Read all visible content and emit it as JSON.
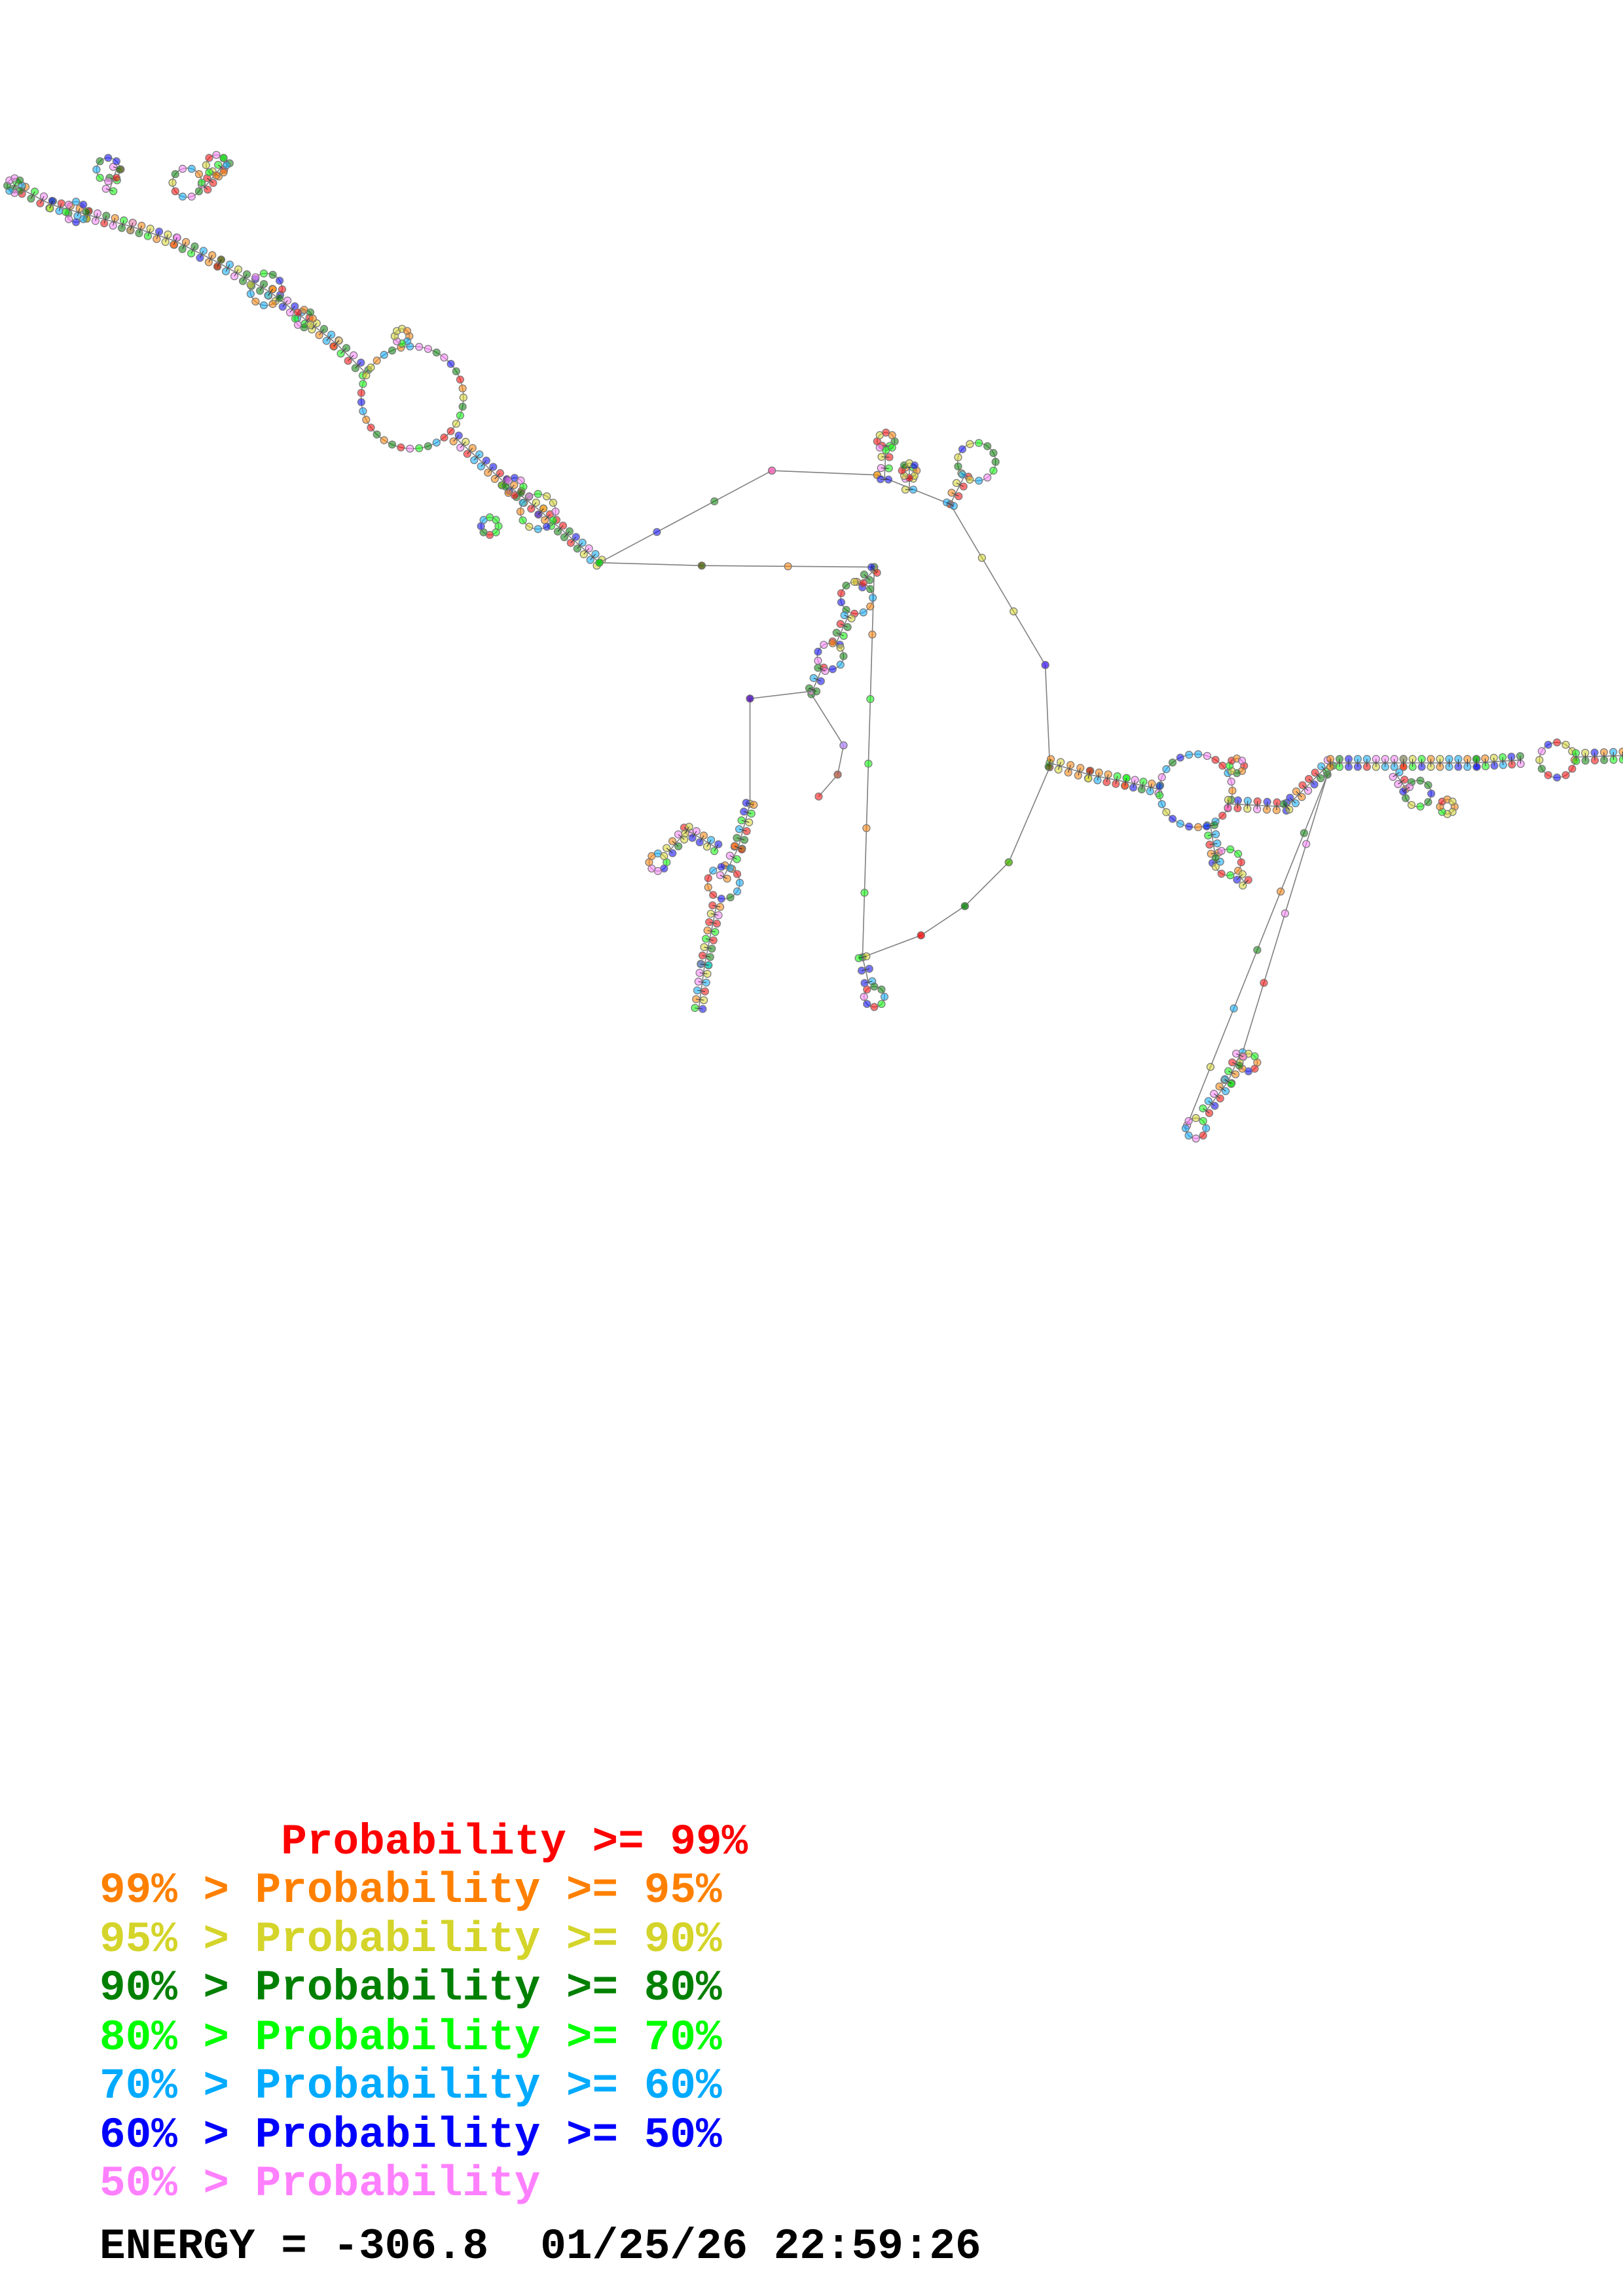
{
  "legend": {
    "items": [
      {
        "text": "       Probability >= 99%",
        "color": "#ff0000"
      },
      {
        "text": "99% > Probability >= 95%",
        "color": "#ff8000"
      },
      {
        "text": "95% > Probability >= 90%",
        "color": "#d4d42a"
      },
      {
        "text": "90% > Probability >= 80%",
        "color": "#008000"
      },
      {
        "text": "80% > Probability >= 70%",
        "color": "#00ff00"
      },
      {
        "text": "70% > Probability >= 60%",
        "color": "#00aaff"
      },
      {
        "text": "60% > Probability >= 50%",
        "color": "#0000ff"
      },
      {
        "text": "50% > Probability",
        "color": "#ff80ff"
      }
    ]
  },
  "energy_line": "ENERGY = -306.8  01/25/26 22:59:26",
  "energy": -306.8,
  "date": "01/25/26",
  "time": "22:59:26",
  "structure": {
    "type": "RNA secondary structure",
    "backbone_color": "#808080"
  }
}
